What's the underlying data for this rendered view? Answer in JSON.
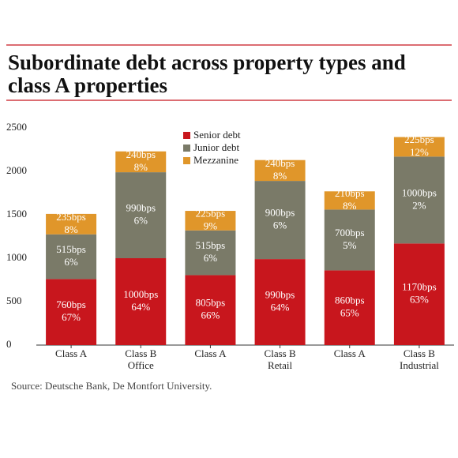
{
  "chart_data": {
    "type": "stacked_bar",
    "title_lines": [
      "Subordinate debt across property types and",
      "class A properties"
    ],
    "categories": [
      "Class A",
      "Class B",
      "Class A",
      "Class B",
      "Class A",
      "Class B"
    ],
    "groups": [
      "Office",
      "Retail",
      "Industrial"
    ],
    "series": [
      {
        "name": "Senior debt",
        "color": "#c8161d",
        "values": [
          760,
          1000,
          805,
          990,
          860,
          1170
        ],
        "value_labels": [
          "760bps",
          "1000bps",
          "805bps",
          "990bps",
          "860bps",
          "1170bps"
        ],
        "share_labels": [
          "67%",
          "64%",
          "66%",
          "64%",
          "65%",
          "63%"
        ]
      },
      {
        "name": "Junior debt",
        "color": "#7a7a68",
        "values": [
          515,
          990,
          515,
          900,
          700,
          1000
        ],
        "value_labels": [
          "515bps",
          "990bps",
          "515bps",
          "900bps",
          "700bps",
          "1000bps"
        ],
        "share_labels": [
          "6%",
          "6%",
          "6%",
          "6%",
          "5%",
          "2%"
        ]
      },
      {
        "name": "Mezzanine",
        "color": "#e0962a",
        "values": [
          235,
          240,
          225,
          240,
          210,
          225
        ],
        "value_labels": [
          "235bps",
          "240bps",
          "225bps",
          "240bps",
          "210bps",
          "225bps"
        ],
        "share_labels": [
          "8%",
          "8%",
          "9%",
          "8%",
          "8%",
          "12%"
        ]
      }
    ],
    "ylim": [
      0,
      2500
    ],
    "yticks": [
      0,
      500,
      1000,
      1500,
      2000,
      2500
    ],
    "source": "Source: Deutsche Bank, De Montfort University."
  }
}
